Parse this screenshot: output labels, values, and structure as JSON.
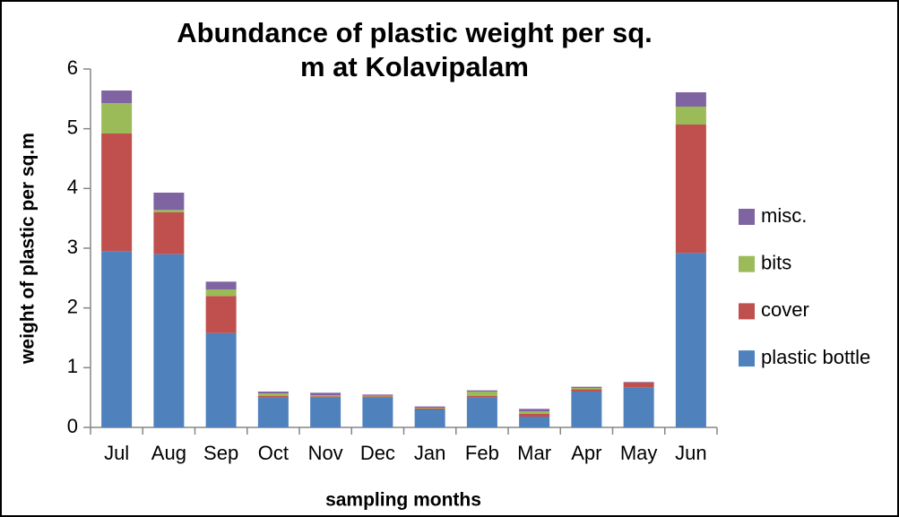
{
  "chart_data": {
    "type": "stacked_bar",
    "title": "Abundance of plastic weight per sq. m at Kolavipalam",
    "x_label": "sampling months",
    "y_label": "weight of plastic per sq.m",
    "categories": [
      "Jul",
      "Aug",
      "Sep",
      "Oct",
      "Nov",
      "Dec",
      "Jan",
      "Feb",
      "Mar",
      "Apr",
      "May",
      "Jun"
    ],
    "series": [
      {
        "name": "plastic bottle",
        "color": "#4f81bd",
        "values": [
          2.95,
          2.9,
          1.58,
          0.5,
          0.5,
          0.5,
          0.3,
          0.5,
          0.18,
          0.6,
          0.67,
          2.92
        ]
      },
      {
        "name": "cover",
        "color": "#c0504d",
        "values": [
          1.97,
          0.7,
          0.62,
          0.03,
          0.02,
          0.02,
          0.02,
          0.03,
          0.05,
          0.04,
          0.08,
          2.15
        ]
      },
      {
        "name": "bits",
        "color": "#9bbb59",
        "values": [
          0.51,
          0.04,
          0.11,
          0.04,
          0.02,
          0.01,
          0.01,
          0.07,
          0.04,
          0.02,
          0,
          0.3
        ]
      },
      {
        "name": "misc.",
        "color": "#8064a2",
        "values": [
          0.21,
          0.29,
          0.13,
          0.03,
          0.04,
          0.02,
          0.02,
          0.02,
          0.04,
          0.02,
          0.01,
          0.24
        ]
      }
    ],
    "ylim": [
      0,
      6
    ],
    "yticks": [
      0,
      1,
      2,
      3,
      4,
      5,
      6
    ],
    "grid": false,
    "legend": "right"
  }
}
